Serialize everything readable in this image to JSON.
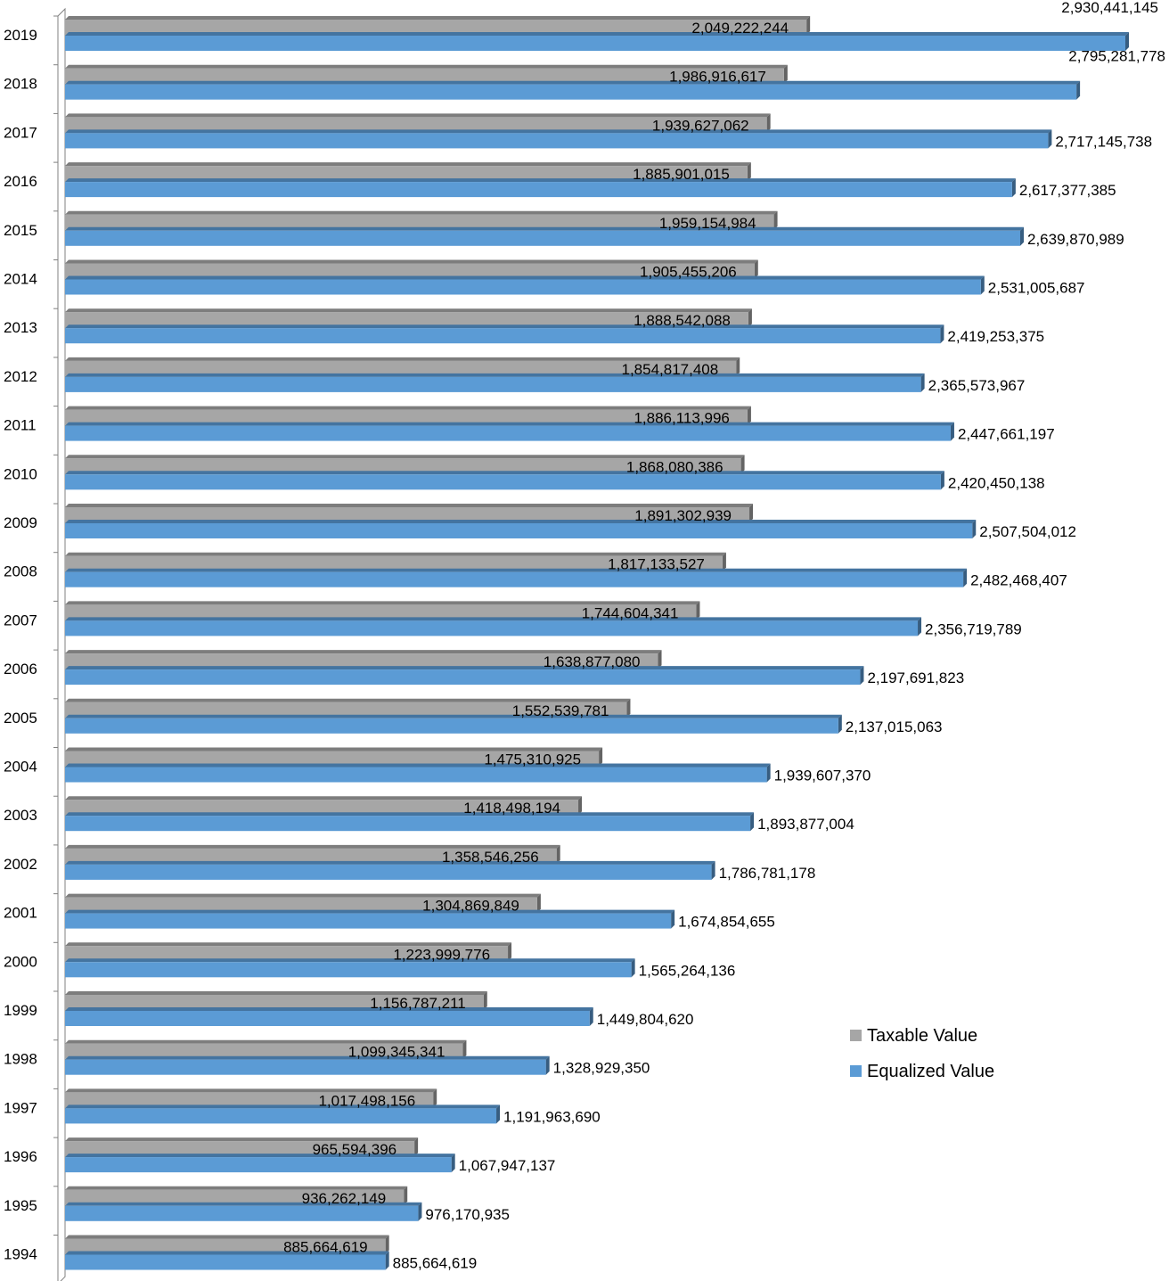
{
  "chart_data": {
    "type": "bar",
    "orientation": "horizontal",
    "title": "",
    "xlabel": "",
    "ylabel": "",
    "xlim": [
      0,
      3000000000
    ],
    "grid": false,
    "legend": "right",
    "categories": [
      "2019",
      "2018",
      "2017",
      "2016",
      "2015",
      "2014",
      "2013",
      "2012",
      "2011",
      "2010",
      "2009",
      "2008",
      "2007",
      "2006",
      "2005",
      "2004",
      "2003",
      "2002",
      "2001",
      "2000",
      "1999",
      "1998",
      "1997",
      "1996",
      "1995",
      "1994"
    ],
    "series": [
      {
        "name": "Taxable Value",
        "color": "#a6a6a6",
        "values": [
          2049222244,
          1986916617,
          1939627062,
          1885901015,
          1959154984,
          1905455206,
          1888542088,
          1854817408,
          1886113996,
          1868080386,
          1891302939,
          1817133527,
          1744604341,
          1638877080,
          1552539781,
          1475310925,
          1418498194,
          1358546256,
          1304869849,
          1223999776,
          1156787211,
          1099345341,
          1017498156,
          965594396,
          936262149,
          885664619
        ],
        "labels": [
          "2,049,222,244",
          "1,986,916,617",
          "1,939,627,062",
          "1,885,901,015",
          "1,959,154,984",
          "1,905,455,206",
          "1,888,542,088",
          "1,854,817,408",
          "1,886,113,996",
          "1,868,080,386",
          "1,891,302,939",
          "1,817,133,527",
          "1,744,604,341",
          "1,638,877,080",
          "1,552,539,781",
          "1,475,310,925",
          "1,418,498,194",
          "1,358,546,256",
          "1,304,869,849",
          "1,223,999,776",
          "1,156,787,211",
          "1,099,345,341",
          "1,017,498,156",
          "965,594,396",
          "936,262,149",
          "885,664,619"
        ]
      },
      {
        "name": "Equalized Value",
        "color": "#5b9bd5",
        "values": [
          2930441145,
          2795281778,
          2717145738,
          2617377385,
          2639870989,
          2531005687,
          2419253375,
          2365573967,
          2447661197,
          2420450138,
          2507504012,
          2482468407,
          2356719789,
          2197691823,
          2137015063,
          1939607370,
          1893877004,
          1786781178,
          1674854655,
          1565264136,
          1449804620,
          1328929350,
          1191963690,
          1067947137,
          976170935,
          885664619
        ],
        "labels": [
          "2,930,441,145",
          "2,795,281,778",
          "2,717,145,738",
          "2,617,377,385",
          "2,639,870,989",
          "2,531,005,687",
          "2,419,253,375",
          "2,365,573,967",
          "2,447,661,197",
          "2,420,450,138",
          "2,507,504,012",
          "2,482,468,407",
          "2,356,719,789",
          "2,197,691,823",
          "2,137,015,063",
          "1,939,607,370",
          "1,893,877,004",
          "1,786,781,178",
          "1,674,854,655",
          "1,565,264,136",
          "1,449,804,620",
          "1,328,929,350",
          "1,191,963,690",
          "1,067,947,137",
          "976,170,935",
          "885,664,619"
        ]
      }
    ]
  }
}
